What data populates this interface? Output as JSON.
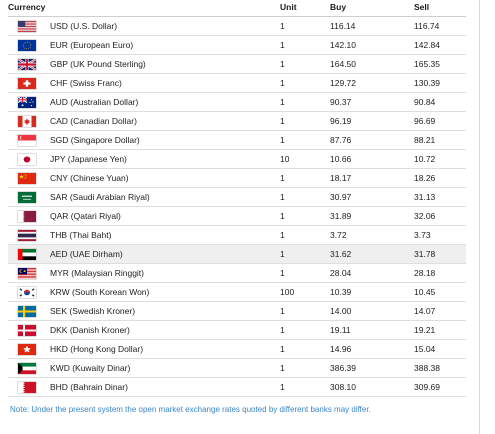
{
  "table": {
    "headers": {
      "currency": "Currency",
      "unit": "Unit",
      "buy": "Buy",
      "sell": "Sell"
    },
    "rows": [
      {
        "flag": "us-flag-icon",
        "name": "USD (U.S. Dollar)",
        "unit": "1",
        "buy": "116.14",
        "sell": "116.74"
      },
      {
        "flag": "eu-flag-icon",
        "name": "EUR (European Euro)",
        "unit": "1",
        "buy": "142.10",
        "sell": "142.84"
      },
      {
        "flag": "gb-flag-icon",
        "name": "GBP (UK Pound Sterling)",
        "unit": "1",
        "buy": "164.50",
        "sell": "165.35"
      },
      {
        "flag": "ch-flag-icon",
        "name": "CHF (Swiss Franc)",
        "unit": "1",
        "buy": "129.72",
        "sell": "130.39"
      },
      {
        "flag": "au-flag-icon",
        "name": "AUD (Australian Dollar)",
        "unit": "1",
        "buy": "90.37",
        "sell": "90.84"
      },
      {
        "flag": "ca-flag-icon",
        "name": "CAD (Canadian Dollar)",
        "unit": "1",
        "buy": "96.19",
        "sell": "96.69"
      },
      {
        "flag": "sg-flag-icon",
        "name": "SGD (Singapore Dollar)",
        "unit": "1",
        "buy": "87.76",
        "sell": "88.21"
      },
      {
        "flag": "jp-flag-icon",
        "name": "JPY (Japanese Yen)",
        "unit": "10",
        "buy": "10.66",
        "sell": "10.72"
      },
      {
        "flag": "cn-flag-icon",
        "name": "CNY (Chinese Yuan)",
        "unit": "1",
        "buy": "18.17",
        "sell": "18.26"
      },
      {
        "flag": "sa-flag-icon",
        "name": "SAR (Saudi Arabian Riyal)",
        "unit": "1",
        "buy": "30.97",
        "sell": "31.13"
      },
      {
        "flag": "qa-flag-icon",
        "name": "QAR (Qatari Riyal)",
        "unit": "1",
        "buy": "31.89",
        "sell": "32.06"
      },
      {
        "flag": "th-flag-icon",
        "name": "THB (Thai Baht)",
        "unit": "1",
        "buy": "3.72",
        "sell": "3.73"
      },
      {
        "flag": "ae-flag-icon",
        "name": "AED (UAE Dirham)",
        "unit": "1",
        "buy": "31.62",
        "sell": "31.78",
        "highlighted": true
      },
      {
        "flag": "my-flag-icon",
        "name": "MYR (Malaysian Ringgit)",
        "unit": "1",
        "buy": "28.04",
        "sell": "28.18"
      },
      {
        "flag": "kr-flag-icon",
        "name": "KRW (South Korean Won)",
        "unit": "100",
        "buy": "10.39",
        "sell": "10.45"
      },
      {
        "flag": "se-flag-icon",
        "name": "SEK (Swedish Kroner)",
        "unit": "1",
        "buy": "14.00",
        "sell": "14.07"
      },
      {
        "flag": "dk-flag-icon",
        "name": "DKK (Danish Kroner)",
        "unit": "1",
        "buy": "19.11",
        "sell": "19.21"
      },
      {
        "flag": "hk-flag-icon",
        "name": "HKD (Hong Kong Dollar)",
        "unit": "1",
        "buy": "14.96",
        "sell": "15.04"
      },
      {
        "flag": "kw-flag-icon",
        "name": "KWD (Kuwaity Dinar)",
        "unit": "1",
        "buy": "386.39",
        "sell": "388.38"
      },
      {
        "flag": "bh-flag-icon",
        "name": "BHD (Bahrain Dinar)",
        "unit": "1",
        "buy": "308.10",
        "sell": "309.69"
      }
    ]
  },
  "note": "Note: Under the present system the open market exchange rates quoted by different banks may differ.",
  "colors": {
    "note_text": "#3a86c8",
    "highlight_row": "#efefef"
  }
}
